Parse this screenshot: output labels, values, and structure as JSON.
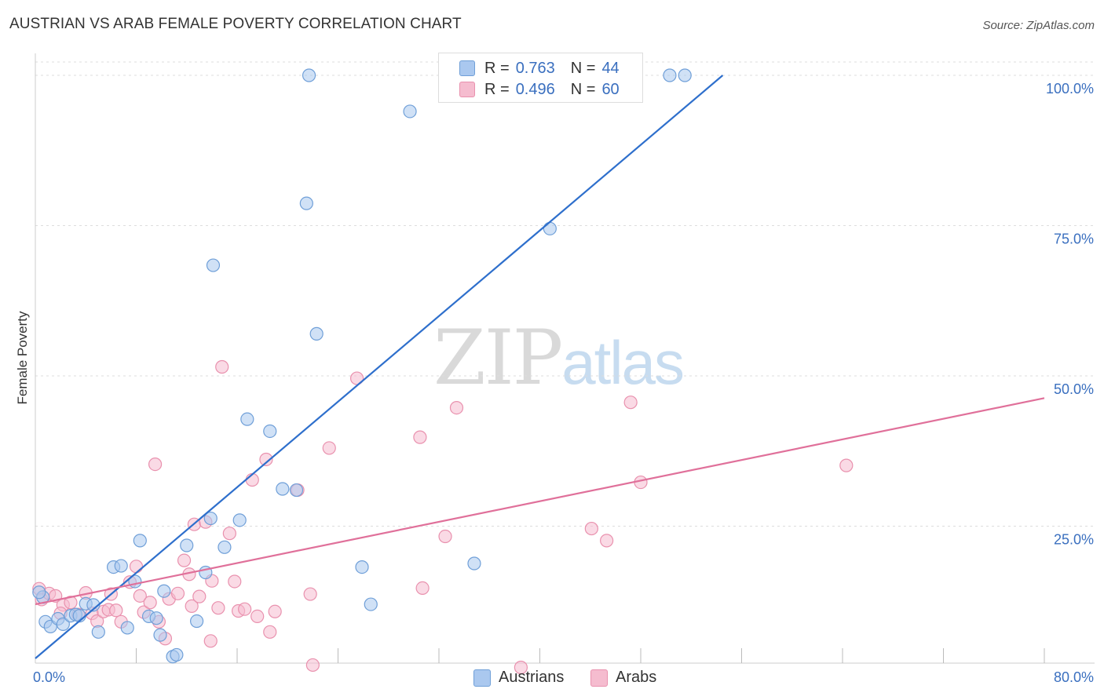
{
  "title": "AUSTRIAN VS ARAB FEMALE POVERTY CORRELATION CHART",
  "source": "Source: ZipAtlas.com",
  "watermark": {
    "zip": "ZIP",
    "atlas": "atlas"
  },
  "legend": {
    "r_label": "R =",
    "n_label": "N =",
    "rows": [
      {
        "r": "0.763",
        "n": "44"
      },
      {
        "r": "0.496",
        "n": "60"
      }
    ]
  },
  "colors": {
    "austrians_fill": "#aac8ef",
    "austrians_stroke": "#6f9fd8",
    "austrians_line": "#2e6fcc",
    "arabs_fill": "#f5bccf",
    "arabs_stroke": "#e991ae",
    "arabs_line": "#e0709a",
    "tick_label": "#3a6fbf",
    "grid": "#dddddd"
  },
  "chart_data": {
    "type": "scatter",
    "ylabel": "Female Poverty",
    "xlim": [
      0,
      80
    ],
    "ylim": [
      0,
      100
    ],
    "x_tick_labels": [
      {
        "value": 0,
        "label": "0.0%"
      },
      {
        "value": 80,
        "label": "80.0%"
      }
    ],
    "y_tick_labels": [
      {
        "value": 25,
        "label": "25.0%"
      },
      {
        "value": 50,
        "label": "50.0%"
      },
      {
        "value": 75,
        "label": "75.0%"
      },
      {
        "value": 100,
        "label": "100.0%"
      }
    ],
    "x_minor_ticks": [
      8,
      16,
      24,
      32,
      40,
      48,
      56,
      64,
      72,
      80
    ],
    "grid": true,
    "legend_position": "top-center",
    "series": [
      {
        "name": "Austrians",
        "color": "#aac8ef",
        "trend": {
          "x": [
            0,
            54.5
          ],
          "y": [
            3,
            100
          ]
        },
        "points": [
          [
            0.6,
            13.2
          ],
          [
            0.8,
            9.1
          ],
          [
            1.2,
            8.3
          ],
          [
            1.8,
            9.6
          ],
          [
            2.2,
            8.7
          ],
          [
            2.8,
            10.1
          ],
          [
            3.2,
            10.3
          ],
          [
            3.5,
            10.1
          ],
          [
            4.0,
            12.1
          ],
          [
            4.6,
            11.9
          ],
          [
            5.0,
            7.4
          ],
          [
            6.2,
            18.2
          ],
          [
            6.8,
            18.4
          ],
          [
            7.3,
            8.1
          ],
          [
            7.9,
            15.8
          ],
          [
            8.3,
            22.6
          ],
          [
            9.0,
            10.0
          ],
          [
            9.6,
            9.7
          ],
          [
            9.9,
            6.9
          ],
          [
            10.2,
            14.2
          ],
          [
            10.9,
            3.3
          ],
          [
            11.2,
            3.6
          ],
          [
            12.0,
            21.8
          ],
          [
            12.8,
            9.2
          ],
          [
            13.5,
            17.3
          ],
          [
            13.9,
            26.3
          ],
          [
            14.1,
            68.4
          ],
          [
            15.0,
            21.5
          ],
          [
            16.2,
            26.0
          ],
          [
            16.8,
            42.8
          ],
          [
            18.6,
            40.8
          ],
          [
            19.6,
            31.2
          ],
          [
            20.7,
            31.0
          ],
          [
            21.5,
            78.7
          ],
          [
            21.7,
            100.0
          ],
          [
            22.3,
            57.0
          ],
          [
            25.9,
            18.2
          ],
          [
            26.6,
            12.0
          ],
          [
            29.7,
            94.0
          ],
          [
            34.8,
            18.8
          ],
          [
            40.8,
            74.5
          ],
          [
            50.3,
            100.0
          ],
          [
            51.5,
            100.0
          ],
          [
            0.3,
            14.0
          ]
        ]
      },
      {
        "name": "Arabs",
        "color": "#f5bccf",
        "trend": {
          "x": [
            0,
            80
          ],
          "y": [
            12,
            46.3
          ]
        },
        "points": [
          [
            0.3,
            14.6
          ],
          [
            0.5,
            12.8
          ],
          [
            1.1,
            13.8
          ],
          [
            1.6,
            13.4
          ],
          [
            2.2,
            11.9
          ],
          [
            2.8,
            12.3
          ],
          [
            3.4,
            10.3
          ],
          [
            4.0,
            13.9
          ],
          [
            4.5,
            10.5
          ],
          [
            4.9,
            9.2
          ],
          [
            5.4,
            10.8
          ],
          [
            5.8,
            11.1
          ],
          [
            6.0,
            13.7
          ],
          [
            6.4,
            11.0
          ],
          [
            6.8,
            9.1
          ],
          [
            7.5,
            15.7
          ],
          [
            8.0,
            18.3
          ],
          [
            8.3,
            13.4
          ],
          [
            8.6,
            10.7
          ],
          [
            9.1,
            12.3
          ],
          [
            9.5,
            35.3
          ],
          [
            9.8,
            9.1
          ],
          [
            10.3,
            6.3
          ],
          [
            10.6,
            12.9
          ],
          [
            11.3,
            13.8
          ],
          [
            11.8,
            19.3
          ],
          [
            12.2,
            17.0
          ],
          [
            12.4,
            11.7
          ],
          [
            12.6,
            25.3
          ],
          [
            13.0,
            13.3
          ],
          [
            13.5,
            25.7
          ],
          [
            13.9,
            5.9
          ],
          [
            14.0,
            15.9
          ],
          [
            14.5,
            11.4
          ],
          [
            14.8,
            51.5
          ],
          [
            15.4,
            23.8
          ],
          [
            15.8,
            15.8
          ],
          [
            16.1,
            10.9
          ],
          [
            16.6,
            11.2
          ],
          [
            17.2,
            32.7
          ],
          [
            17.6,
            10.0
          ],
          [
            18.3,
            36.1
          ],
          [
            18.6,
            7.4
          ],
          [
            19.0,
            10.8
          ],
          [
            20.8,
            31.0
          ],
          [
            21.8,
            13.7
          ],
          [
            22.0,
            1.9
          ],
          [
            23.3,
            38.0
          ],
          [
            25.5,
            49.6
          ],
          [
            30.5,
            39.8
          ],
          [
            30.7,
            14.7
          ],
          [
            32.5,
            23.3
          ],
          [
            33.4,
            44.7
          ],
          [
            38.5,
            1.5
          ],
          [
            44.1,
            24.6
          ],
          [
            45.3,
            22.6
          ],
          [
            47.2,
            45.6
          ],
          [
            48.0,
            32.3
          ],
          [
            64.3,
            35.1
          ],
          [
            2.0,
            10.5
          ]
        ]
      }
    ]
  }
}
